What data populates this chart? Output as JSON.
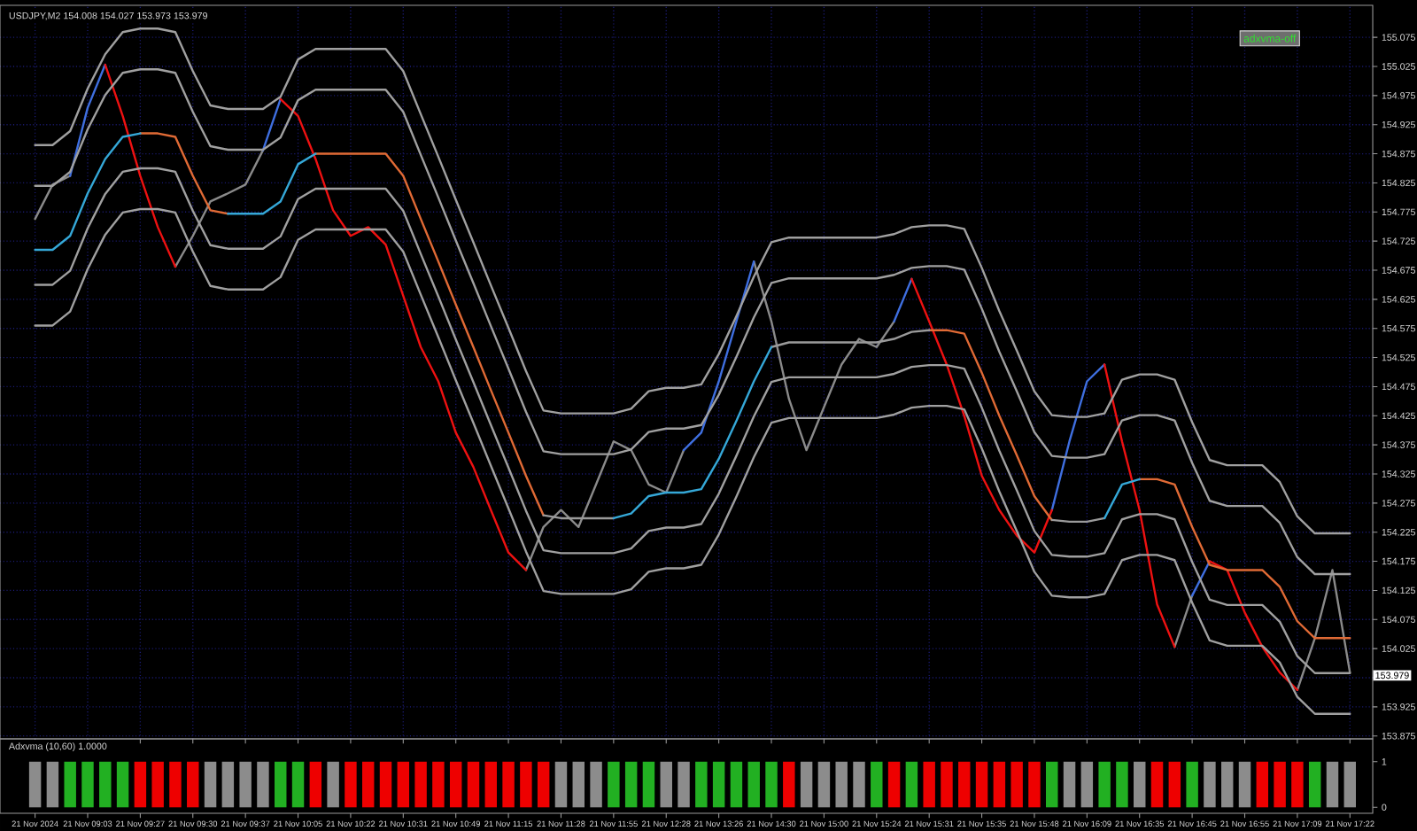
{
  "chart_data": [
    {
      "type": "line",
      "title": "USDJPY,M2  154.008 154.027 153.973 153.979",
      "annotations": [
        "adxvma-off"
      ],
      "categories": [
        null,
        null,
        null,
        null,
        null,
        null,
        null,
        null,
        null,
        null,
        null,
        null,
        null,
        null,
        null,
        null,
        null,
        null,
        null,
        null,
        null,
        null,
        null,
        null,
        null,
        null,
        null,
        null,
        null,
        null,
        null,
        null,
        null,
        null,
        null,
        null,
        null,
        null,
        null,
        null,
        null,
        null,
        null,
        null,
        null,
        null,
        null,
        null,
        null,
        null,
        null,
        null,
        null,
        null,
        null,
        null,
        null,
        null,
        null,
        null,
        null,
        null,
        null,
        null,
        null,
        null,
        null,
        null,
        null,
        null,
        null,
        null,
        null,
        null,
        null,
        null
      ],
      "series": [
        {
          "color": "#8a8a8a",
          "values": [
            154.763,
            154.822,
            154.837,
            null,
            null,
            null,
            null,
            null,
            154.681,
            154.734,
            154.793,
            154.807,
            154.822,
            154.881,
            null,
            null,
            null,
            null,
            null,
            null,
            null,
            null,
            null,
            null,
            null,
            null,
            null,
            null,
            154.16,
            154.234,
            154.263,
            154.234,
            154.307,
            154.381,
            154.366,
            154.307,
            154.293,
            154.366,
            null,
            null,
            null,
            154.69,
            154.587,
            154.454,
            154.366,
            154.44,
            154.513,
            154.557,
            154.543,
            154.587,
            null,
            null,
            null,
            null,
            null,
            null,
            null,
            null,
            null,
            null,
            null,
            null,
            null,
            null,
            null,
            154.028,
            154.116,
            null,
            null,
            null,
            null,
            null,
            153.954,
            154.043,
            154.16,
            153.984
          ]
        },
        {
          "color": "#3f6fe0",
          "values": [
            null,
            null,
            154.837,
            154.954,
            155.028,
            null,
            null,
            null,
            null,
            null,
            null,
            null,
            null,
            154.881,
            154.969,
            null,
            null,
            null,
            null,
            null,
            null,
            null,
            null,
            null,
            null,
            null,
            null,
            null,
            null,
            null,
            null,
            null,
            null,
            null,
            null,
            null,
            null,
            154.366,
            154.396,
            154.484,
            154.587,
            154.69,
            null,
            null,
            null,
            null,
            null,
            null,
            null,
            154.587,
            154.66,
            null,
            null,
            null,
            null,
            null,
            null,
            null,
            154.263,
            154.381,
            154.484,
            154.513,
            null,
            null,
            null,
            null,
            154.116,
            154.175,
            null,
            null,
            null,
            null,
            null,
            null,
            null,
            null
          ]
        },
        {
          "color": "#ee1111",
          "values": [
            null,
            null,
            null,
            null,
            155.028,
            154.94,
            154.837,
            154.749,
            154.681,
            null,
            null,
            null,
            null,
            null,
            154.969,
            154.94,
            154.866,
            154.778,
            154.734,
            154.749,
            154.719,
            154.631,
            154.543,
            154.484,
            154.396,
            154.337,
            154.263,
            154.19,
            154.16,
            null,
            null,
            null,
            null,
            null,
            null,
            null,
            null,
            null,
            null,
            null,
            null,
            null,
            null,
            null,
            null,
            null,
            null,
            null,
            null,
            null,
            154.66,
            154.587,
            154.513,
            154.425,
            154.322,
            154.263,
            154.219,
            154.19,
            154.263,
            null,
            null,
            154.513,
            154.381,
            154.263,
            154.101,
            154.028,
            null,
            154.175,
            154.16,
            154.087,
            154.028,
            153.984,
            153.954,
            null,
            null,
            null
          ]
        },
        {
          "color": "#e06a35",
          "values": [
            null,
            null,
            null,
            null,
            null,
            null,
            154.91,
            154.91,
            154.904,
            154.837,
            154.778,
            154.772,
            null,
            null,
            null,
            null,
            154.875,
            154.875,
            154.875,
            154.875,
            154.875,
            154.837,
            154.763,
            154.69,
            154.616,
            154.543,
            154.469,
            154.396,
            154.322,
            154.254,
            null,
            null,
            null,
            null,
            null,
            null,
            null,
            null,
            null,
            null,
            null,
            null,
            null,
            null,
            null,
            null,
            null,
            null,
            null,
            null,
            null,
            154.572,
            154.572,
            154.566,
            154.499,
            154.425,
            154.357,
            154.287,
            154.246,
            null,
            null,
            null,
            null,
            154.316,
            154.316,
            154.307,
            154.234,
            154.169,
            154.16,
            154.16,
            154.16,
            154.131,
            154.072,
            154.043,
            154.043,
            154.043
          ]
        },
        {
          "color": "#9a9a9a",
          "values": [
            null,
            null,
            null,
            null,
            null,
            null,
            null,
            null,
            null,
            null,
            null,
            null,
            null,
            null,
            null,
            null,
            null,
            null,
            null,
            null,
            null,
            null,
            null,
            null,
            null,
            null,
            null,
            null,
            null,
            154.254,
            154.249,
            154.249,
            154.249,
            154.249,
            null,
            null,
            null,
            null,
            null,
            null,
            null,
            null,
            154.543,
            154.551,
            154.551,
            154.551,
            154.551,
            154.551,
            154.551,
            154.557,
            154.569,
            154.572,
            null,
            null,
            null,
            null,
            null,
            null,
            154.246,
            154.243,
            154.243,
            154.249,
            null,
            null,
            null,
            null,
            null,
            null,
            null,
            null,
            null,
            null,
            null,
            null,
            null,
            null
          ]
        },
        {
          "color": "#35a8d8",
          "values": [
            154.71,
            154.71,
            154.734,
            154.807,
            154.866,
            154.904,
            154.91,
            null,
            null,
            null,
            null,
            154.772,
            154.772,
            154.772,
            154.793,
            154.857,
            154.875,
            null,
            null,
            null,
            null,
            null,
            null,
            null,
            null,
            null,
            null,
            null,
            null,
            null,
            null,
            null,
            null,
            154.249,
            154.257,
            154.287,
            154.293,
            154.293,
            154.299,
            154.351,
            154.416,
            154.484,
            154.543,
            null,
            null,
            null,
            null,
            null,
            null,
            null,
            null,
            null,
            null,
            null,
            null,
            null,
            null,
            null,
            null,
            null,
            null,
            154.249,
            154.307,
            154.316,
            null,
            null,
            null,
            null,
            null,
            null,
            null,
            null,
            null,
            null,
            null,
            null
          ]
        },
        {
          "color": "#a0a0a0",
          "values": [
            154.89,
            154.89,
            154.914,
            154.987,
            155.046,
            155.084,
            155.09,
            155.09,
            155.084,
            155.017,
            154.958,
            154.952,
            154.952,
            154.952,
            154.973,
            155.037,
            155.055,
            155.055,
            155.055,
            155.055,
            155.055,
            155.017,
            154.943,
            154.87,
            154.796,
            154.723,
            154.649,
            154.576,
            154.502,
            154.434,
            154.429,
            154.429,
            154.429,
            154.429,
            154.437,
            154.467,
            154.473,
            154.473,
            154.479,
            154.531,
            154.596,
            154.664,
            154.723,
            154.731,
            154.731,
            154.731,
            154.731,
            154.731,
            154.731,
            154.737,
            154.749,
            154.752,
            154.752,
            154.746,
            154.679,
            154.605,
            154.537,
            154.467,
            154.426,
            154.423,
            154.423,
            154.429,
            154.487,
            154.496,
            154.496,
            154.487,
            154.414,
            154.349,
            154.34,
            154.34,
            154.34,
            154.311,
            154.252,
            154.223,
            154.223,
            154.223
          ]
        },
        {
          "color": "#a0a0a0",
          "values": [
            154.82,
            154.82,
            154.844,
            154.917,
            154.976,
            155.014,
            155.02,
            155.02,
            155.014,
            154.947,
            154.888,
            154.882,
            154.882,
            154.882,
            154.903,
            154.967,
            154.985,
            154.985,
            154.985,
            154.985,
            154.985,
            154.947,
            154.873,
            154.8,
            154.726,
            154.653,
            154.579,
            154.506,
            154.432,
            154.364,
            154.359,
            154.359,
            154.359,
            154.359,
            154.367,
            154.397,
            154.403,
            154.403,
            154.409,
            154.461,
            154.526,
            154.594,
            154.653,
            154.661,
            154.661,
            154.661,
            154.661,
            154.661,
            154.661,
            154.667,
            154.679,
            154.682,
            154.682,
            154.676,
            154.609,
            154.535,
            154.467,
            154.397,
            154.356,
            154.353,
            154.353,
            154.359,
            154.417,
            154.426,
            154.426,
            154.417,
            154.344,
            154.279,
            154.27,
            154.27,
            154.27,
            154.241,
            154.182,
            154.153,
            154.153,
            154.153
          ]
        },
        {
          "color": "#a0a0a0",
          "values": [
            154.65,
            154.65,
            154.674,
            154.747,
            154.806,
            154.844,
            154.85,
            154.85,
            154.844,
            154.777,
            154.718,
            154.712,
            154.712,
            154.712,
            154.733,
            154.797,
            154.815,
            154.815,
            154.815,
            154.815,
            154.815,
            154.777,
            154.703,
            154.63,
            154.556,
            154.483,
            154.409,
            154.336,
            154.262,
            154.194,
            154.189,
            154.189,
            154.189,
            154.189,
            154.197,
            154.227,
            154.233,
            154.233,
            154.239,
            154.291,
            154.356,
            154.424,
            154.483,
            154.491,
            154.491,
            154.491,
            154.491,
            154.491,
            154.491,
            154.497,
            154.509,
            154.512,
            154.512,
            154.506,
            154.439,
            154.365,
            154.297,
            154.227,
            154.186,
            154.183,
            154.183,
            154.189,
            154.247,
            154.256,
            154.256,
            154.247,
            154.174,
            154.109,
            154.1,
            154.1,
            154.1,
            154.071,
            154.012,
            153.983,
            153.983,
            153.983
          ]
        },
        {
          "color": "#a0a0a0",
          "values": [
            154.58,
            154.58,
            154.604,
            154.677,
            154.736,
            154.774,
            154.78,
            154.78,
            154.774,
            154.707,
            154.648,
            154.642,
            154.642,
            154.642,
            154.663,
            154.727,
            154.745,
            154.745,
            154.745,
            154.745,
            154.745,
            154.707,
            154.633,
            154.56,
            154.486,
            154.413,
            154.339,
            154.266,
            154.192,
            154.124,
            154.119,
            154.119,
            154.119,
            154.119,
            154.127,
            154.157,
            154.163,
            154.163,
            154.169,
            154.221,
            154.286,
            154.354,
            154.413,
            154.421,
            154.421,
            154.421,
            154.421,
            154.421,
            154.421,
            154.427,
            154.439,
            154.442,
            154.442,
            154.436,
            154.369,
            154.295,
            154.227,
            154.157,
            154.116,
            154.113,
            154.113,
            154.119,
            154.177,
            154.186,
            154.186,
            154.177,
            154.104,
            154.039,
            154.03,
            154.03,
            154.03,
            154.001,
            153.942,
            153.913,
            153.913,
            153.913
          ]
        }
      ],
      "ylim": [
        153.87,
        155.13
      ],
      "yticks": [
        153.875,
        153.925,
        {
          "value": 153.975,
          "label": null
        },
        154.025,
        154.075,
        154.125,
        154.175,
        154.225,
        154.275,
        154.325,
        154.375,
        154.425,
        154.475,
        154.525,
        154.575,
        154.625,
        154.675,
        154.725,
        154.775,
        154.825,
        154.875,
        154.925,
        154.975,
        155.025,
        155.075
      ],
      "ref_lines": [
        {
          "axis": "y",
          "value": 153.979,
          "label": "153.979"
        }
      ],
      "tick_labels": "y",
      "grid": true
    },
    {
      "type": "bar",
      "title": "Adxvma (10,60) 1.0000",
      "categories": [
        "21 Nov 2024",
        null,
        null,
        "21 Nov 09:03",
        null,
        null,
        "21 Nov 09:27",
        null,
        null,
        "21 Nov 09:30",
        null,
        null,
        "21 Nov 09:37",
        null,
        null,
        "21 Nov 10:05",
        null,
        null,
        "21 Nov 10:22",
        null,
        null,
        "21 Nov 10:31",
        null,
        null,
        "21 Nov 10:49",
        null,
        null,
        "21 Nov 11:15",
        null,
        null,
        "21 Nov 11:28",
        null,
        null,
        "21 Nov 11:55",
        null,
        null,
        "21 Nov 12:28",
        null,
        null,
        "21 Nov 13:26",
        null,
        null,
        "21 Nov 14:30",
        null,
        null,
        "21 Nov 15:00",
        null,
        null,
        "21 Nov 15:24",
        null,
        null,
        "21 Nov 15:31",
        null,
        null,
        "21 Nov 15:35",
        null,
        null,
        "21 Nov 15:48",
        null,
        null,
        "21 Nov 16:09",
        null,
        null,
        "21 Nov 16:35",
        null,
        null,
        "21 Nov 16:45",
        null,
        null,
        "21 Nov 16:55",
        null,
        null,
        "21 Nov 17:09",
        null,
        null,
        "21 Nov 17:22"
      ],
      "values": [
        1,
        1,
        1,
        1,
        1,
        1,
        1,
        1,
        1,
        1,
        1,
        1,
        1,
        1,
        1,
        1,
        1,
        1,
        1,
        1,
        1,
        1,
        1,
        1,
        1,
        1,
        1,
        1,
        1,
        1,
        1,
        1,
        1,
        1,
        1,
        1,
        1,
        1,
        1,
        1,
        1,
        1,
        1,
        1,
        1,
        1,
        1,
        1,
        1,
        1,
        1,
        1,
        1,
        1,
        1,
        1,
        1,
        1,
        1,
        1,
        1,
        1,
        1,
        1,
        1,
        1,
        1,
        1,
        1,
        1,
        1,
        1,
        1,
        1,
        1,
        1
      ],
      "colors": [
        "#8c8c8c",
        "#8c8c8c",
        "#22b022",
        "#22b022",
        "#22b022",
        "#22b022",
        "#ee0000",
        "#ee0000",
        "#ee0000",
        "#ee0000",
        "#8c8c8c",
        "#8c8c8c",
        "#8c8c8c",
        "#8c8c8c",
        "#22b022",
        "#22b022",
        "#ee0000",
        "#8c8c8c",
        "#ee0000",
        "#ee0000",
        "#ee0000",
        "#ee0000",
        "#ee0000",
        "#ee0000",
        "#ee0000",
        "#ee0000",
        "#ee0000",
        "#ee0000",
        "#ee0000",
        "#ee0000",
        "#8c8c8c",
        "#8c8c8c",
        "#8c8c8c",
        "#22b022",
        "#22b022",
        "#22b022",
        "#8c8c8c",
        "#8c8c8c",
        "#22b022",
        "#22b022",
        "#22b022",
        "#22b022",
        "#22b022",
        "#ee0000",
        "#8c8c8c",
        "#8c8c8c",
        "#8c8c8c",
        "#8c8c8c",
        "#22b022",
        "#ee0000",
        "#22b022",
        "#ee0000",
        "#ee0000",
        "#ee0000",
        "#ee0000",
        "#ee0000",
        "#ee0000",
        "#ee0000",
        "#22b022",
        "#8c8c8c",
        "#8c8c8c",
        "#22b022",
        "#22b022",
        "#8c8c8c",
        "#ee0000",
        "#ee0000",
        "#22b022",
        "#8c8c8c",
        "#8c8c8c",
        "#8c8c8c",
        "#ee0000",
        "#ee0000",
        "#ee0000",
        "#22b022",
        "#8c8c8c",
        "#8c8c8c"
      ],
      "ylim": [
        -0.13,
        1.5
      ],
      "yticks": [
        0,
        1
      ]
    }
  ]
}
